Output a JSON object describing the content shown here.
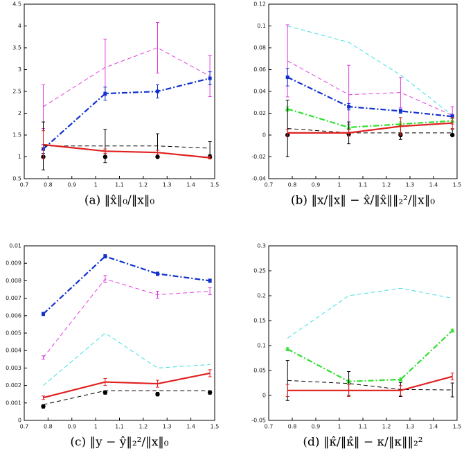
{
  "chart_data": [
    {
      "type": "line",
      "caption": "(a) ‖x̂‖₀/‖x‖₀",
      "x": [
        0.78,
        1.04,
        1.26,
        1.48
      ],
      "xlim": [
        0.7,
        1.5
      ],
      "xticks": [
        0.7,
        0.8,
        0.9,
        1,
        1.1,
        1.2,
        1.3,
        1.4,
        1.5
      ],
      "ylim": [
        0.5,
        4.5
      ],
      "yticks": [
        0.5,
        1,
        1.5,
        2,
        2.5,
        3,
        3.5,
        4,
        4.5
      ],
      "series": [
        {
          "color": "#e040e0",
          "line": "dashed",
          "marker": "none",
          "values": [
            2.15,
            3.05,
            3.5,
            2.85
          ],
          "errors": [
            0.5,
            0.65,
            0.58,
            0.47
          ]
        },
        {
          "color": "#1030d0",
          "line": "dashdot",
          "marker": "square",
          "values": [
            1.18,
            2.45,
            2.5,
            2.8
          ],
          "errors": [
            0.1,
            0.15,
            0.15,
            0.15
          ]
        },
        {
          "color": "#000000",
          "line": "dashed",
          "marker": "none",
          "values": [
            1.25,
            1.25,
            1.25,
            1.2
          ],
          "errors": [
            0.55,
            0.38,
            0.28,
            0.15
          ]
        },
        {
          "color": "#000000",
          "line": "none",
          "marker": "circle",
          "values": [
            1,
            1,
            1,
            1
          ]
        },
        {
          "color": "#e02020",
          "line": "solid",
          "marker": "none",
          "values": [
            1.28,
            1.13,
            1.1,
            0.98
          ],
          "errors": [
            0.32,
            0.05,
            0.05,
            0.03
          ]
        }
      ]
    },
    {
      "type": "line",
      "caption": "(b) ‖x/‖x‖ − x̂/‖x̂‖‖₂²/‖x‖₀",
      "x": [
        0.78,
        1.04,
        1.26,
        1.48
      ],
      "xlim": [
        0.7,
        1.5
      ],
      "xticks": [
        0.7,
        0.8,
        0.9,
        1,
        1.1,
        1.2,
        1.3,
        1.4,
        1.5
      ],
      "ylim": [
        -0.04,
        0.12
      ],
      "yticks": [
        -0.04,
        -0.02,
        0,
        0.02,
        0.04,
        0.06,
        0.08,
        0.1,
        0.12
      ],
      "series": [
        {
          "color": "#40e0e0",
          "line": "dashed",
          "marker": "none",
          "values": [
            0.1,
            0.085,
            0.055,
            0.018
          ]
        },
        {
          "color": "#e040e0",
          "line": "dashed",
          "marker": "none",
          "values": [
            0.068,
            0.037,
            0.039,
            0.018
          ],
          "errors": [
            0.033,
            0.027,
            0.014,
            0.008
          ]
        },
        {
          "color": "#1030d0",
          "line": "dashdot",
          "marker": "square",
          "values": [
            0.053,
            0.026,
            0.022,
            0.017
          ],
          "errors": [
            0.008,
            0.003,
            0.002,
            0.002
          ]
        },
        {
          "color": "#30e030",
          "line": "dashdot",
          "marker": "triangle",
          "values": [
            0.024,
            0.007,
            0.01,
            0.013
          ],
          "errors": [
            0.002,
            0.002,
            0.002,
            0.002
          ]
        },
        {
          "color": "#000000",
          "line": "dashed",
          "marker": "none",
          "values": [
            0.006,
            0.002,
            0.002,
            0.002
          ],
          "errors": [
            0.026,
            0.01,
            0.006,
            0.003
          ]
        },
        {
          "color": "#000000",
          "line": "none",
          "marker": "circle",
          "values": [
            0,
            0.001,
            0,
            0
          ]
        },
        {
          "color": "#e02020",
          "line": "solid",
          "marker": "none",
          "values": [
            0.002,
            0.002,
            0.008,
            0.011
          ],
          "errors": [
            0.003,
            0.003,
            0.008,
            0.005
          ]
        }
      ]
    },
    {
      "type": "line",
      "caption": "(c) ‖y − ŷ‖₂²/‖x‖₀",
      "x": [
        0.78,
        1.04,
        1.26,
        1.48
      ],
      "xlim": [
        0.7,
        1.5
      ],
      "xticks": [
        0.7,
        0.8,
        0.9,
        1,
        1.1,
        1.2,
        1.3,
        1.4,
        1.5
      ],
      "ylim": [
        0,
        0.01
      ],
      "yticks": [
        0,
        0.001,
        0.002,
        0.003,
        0.004,
        0.005,
        0.006,
        0.007,
        0.008,
        0.009,
        0.01
      ],
      "series": [
        {
          "color": "#1030d0",
          "line": "dashdot",
          "marker": "square",
          "values": [
            0.0061,
            0.0094,
            0.0084,
            0.008
          ],
          "errors": [
            0.0001,
            0.0001,
            0.0001,
            0.0001
          ]
        },
        {
          "color": "#e040e0",
          "line": "dashed",
          "marker": "none",
          "values": [
            0.0036,
            0.0081,
            0.0072,
            0.0074
          ],
          "errors": [
            0.0001,
            0.0002,
            0.0002,
            0.0002
          ]
        },
        {
          "color": "#40e0e0",
          "line": "dashed",
          "marker": "none",
          "values": [
            0.002,
            0.005,
            0.003,
            0.0032
          ]
        },
        {
          "color": "#e02020",
          "line": "solid",
          "marker": "none",
          "values": [
            0.0013,
            0.0022,
            0.0021,
            0.0027
          ],
          "errors": [
            0.0001,
            0.0002,
            0.0002,
            0.0002
          ]
        },
        {
          "color": "#000000",
          "line": "dashed",
          "marker": "none",
          "values": [
            0.0009,
            0.0017,
            0.0017,
            0.0017
          ]
        },
        {
          "color": "#000000",
          "line": "none",
          "marker": "circle",
          "values": [
            0.0008,
            0.0016,
            0.0015,
            0.0016
          ],
          "errors": [
            0.0001,
            0.0001,
            0.0001,
            0.0001
          ]
        }
      ]
    },
    {
      "type": "line",
      "caption": "(d) ‖κ̂/‖κ̂‖ − κ/‖κ‖‖₂²",
      "x": [
        0.78,
        1.04,
        1.26,
        1.48
      ],
      "xlim": [
        0.7,
        1.5
      ],
      "xticks": [
        0.7,
        0.8,
        0.9,
        1,
        1.1,
        1.2,
        1.3,
        1.4,
        1.5
      ],
      "ylim": [
        -0.05,
        0.3
      ],
      "yticks": [
        -0.05,
        0,
        0.05,
        0.1,
        0.15,
        0.2,
        0.25,
        0.3
      ],
      "series": [
        {
          "color": "#40e0e0",
          "line": "dashed",
          "marker": "none",
          "values": [
            0.115,
            0.2,
            0.215,
            0.195
          ]
        },
        {
          "color": "#30e030",
          "line": "dashdot",
          "marker": "triangle",
          "values": [
            0.093,
            0.028,
            0.032,
            0.13
          ],
          "errors": [
            0.003,
            0.003,
            0.003,
            0.003
          ]
        },
        {
          "color": "#000000",
          "line": "dashed",
          "marker": "none",
          "values": [
            0.03,
            0.024,
            0.012,
            0.011
          ],
          "errors": [
            0.04,
            0.024,
            0.014,
            0.014
          ]
        },
        {
          "color": "#e02020",
          "line": "solid",
          "marker": "none",
          "values": [
            0.01,
            0.01,
            0.01,
            0.038
          ],
          "errors": [
            0.012,
            0.012,
            0.01,
            0.007
          ]
        }
      ]
    }
  ]
}
